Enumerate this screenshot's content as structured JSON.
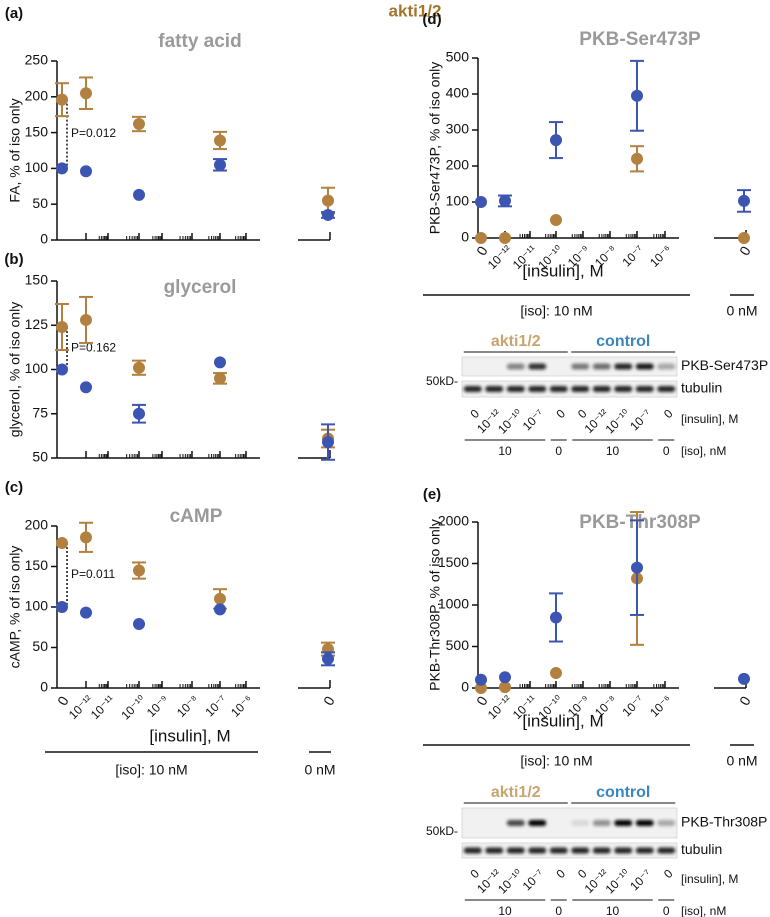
{
  "header": {
    "title": "akti1/2",
    "color": "#a5752d"
  },
  "chart_data": [
    {
      "type": "scatter",
      "panel_label": "(a)",
      "title": "fatty acid",
      "ylabel": "FA, % of iso only",
      "ylim": [
        0,
        250
      ],
      "yticks": [
        0,
        50,
        100,
        150,
        200,
        250
      ],
      "annotation": "P=0.012",
      "series": [
        {
          "color": "#b3813f",
          "values": [
            196,
            205,
            null,
            162,
            null,
            null,
            139,
            null,
            55
          ],
          "errors": [
            23,
            22,
            null,
            10,
            null,
            null,
            12,
            null,
            18
          ]
        },
        {
          "color": "#3d55b2",
          "values": [
            100,
            96,
            null,
            63,
            null,
            null,
            105,
            null,
            35
          ],
          "errors": [
            null,
            null,
            null,
            null,
            null,
            null,
            8,
            null,
            4
          ]
        }
      ]
    },
    {
      "type": "scatter",
      "panel_label": "(b)",
      "title": "glycerol",
      "ylabel": "glycerol, % of iso only",
      "ylim": [
        50,
        150
      ],
      "yticks": [
        50,
        75,
        100,
        125,
        150
      ],
      "annotation": "P=0.162",
      "series": [
        {
          "color": "#b3813f",
          "values": [
            124,
            128,
            null,
            101,
            null,
            null,
            95,
            null,
            61
          ],
          "errors": [
            13,
            13,
            null,
            4,
            null,
            null,
            3,
            null,
            5
          ]
        },
        {
          "color": "#3d55b2",
          "values": [
            100,
            90,
            null,
            75,
            null,
            null,
            104,
            null,
            59
          ],
          "errors": [
            null,
            null,
            null,
            5,
            null,
            null,
            null,
            null,
            10
          ]
        }
      ]
    },
    {
      "type": "scatter",
      "panel_label": "(c)",
      "title": "cAMP",
      "ylabel": "cAMP, % of iso only",
      "ylim": [
        0,
        200
      ],
      "yticks": [
        0,
        50,
        100,
        150,
        200
      ],
      "annotation": "P=0.011",
      "categories": [
        "0",
        "10⁻¹²",
        "10⁻¹¹",
        "10⁻¹⁰",
        "10⁻⁹",
        "10⁻⁸",
        "10⁻⁷",
        "10⁻⁶",
        "0"
      ],
      "xlabel": "[insulin], M",
      "group_labels": [
        "[iso]: 10 nM",
        "0 nM"
      ],
      "series": [
        {
          "color": "#b3813f",
          "values": [
            179,
            186,
            null,
            145,
            null,
            null,
            110,
            null,
            48
          ],
          "errors": [
            null,
            18,
            null,
            10,
            null,
            null,
            12,
            null,
            8
          ]
        },
        {
          "color": "#3d55b2",
          "values": [
            100,
            93,
            null,
            79,
            null,
            null,
            97,
            null,
            36
          ],
          "errors": [
            null,
            null,
            null,
            null,
            null,
            null,
            null,
            null,
            8
          ]
        }
      ]
    },
    {
      "type": "scatter",
      "panel_label": "(d)",
      "title": "PKB-Ser473P",
      "ylabel": "PKB-Ser473P, % of iso only",
      "ylim": [
        0,
        500
      ],
      "yticks": [
        0,
        100,
        200,
        300,
        400,
        500
      ],
      "categories": [
        "0",
        "10⁻¹²",
        "10⁻¹¹",
        "10⁻¹⁰",
        "10⁻⁹",
        "10⁻⁸",
        "10⁻⁷",
        "10⁻⁶",
        "0"
      ],
      "xlabel": "[insulin], M",
      "group_labels": [
        "[iso]: 10 nM",
        "0 nM"
      ],
      "series": [
        {
          "color": "#b3813f",
          "values": [
            0,
            0,
            null,
            50,
            null,
            null,
            220,
            null,
            0
          ],
          "errors": [
            null,
            null,
            null,
            null,
            null,
            null,
            35,
            null,
            null
          ]
        },
        {
          "color": "#3d55b2",
          "values": [
            100,
            103,
            null,
            272,
            null,
            null,
            395,
            null,
            103
          ],
          "errors": [
            null,
            15,
            null,
            50,
            null,
            null,
            97,
            null,
            30
          ]
        }
      ]
    },
    {
      "type": "scatter",
      "panel_label": "(e)",
      "title": "PKB-Thr308P",
      "ylabel": "PKB-Thr308P, % of iso only",
      "ylim": [
        0,
        2000
      ],
      "yticks": [
        0,
        500,
        1000,
        1500,
        2000
      ],
      "categories": [
        "0",
        "10⁻¹²",
        "10⁻¹¹",
        "10⁻¹⁰",
        "10⁻⁹",
        "10⁻⁸",
        "10⁻⁷",
        "10⁻⁶",
        "0"
      ],
      "xlabel": "[insulin], M",
      "group_labels": [
        "[iso]: 10 nM",
        "0 nM"
      ],
      "series": [
        {
          "color": "#b3813f",
          "values": [
            0,
            10,
            null,
            180,
            null,
            null,
            1320,
            null,
            null
          ],
          "errors": [
            null,
            null,
            null,
            null,
            null,
            null,
            800,
            null,
            null
          ]
        },
        {
          "color": "#3d55b2",
          "values": [
            100,
            130,
            null,
            850,
            null,
            null,
            1450,
            null,
            110
          ],
          "errors": [
            null,
            null,
            null,
            290,
            null,
            null,
            570,
            null,
            null
          ]
        }
      ]
    }
  ],
  "blots": [
    {
      "groups": [
        "akti1/2",
        "control"
      ],
      "group_colors": [
        "#c9a46e",
        "#3a86c0"
      ],
      "bands": [
        "PKB-Ser473P",
        "tubulin"
      ],
      "marker": "50kD-",
      "lanes": [
        "0",
        "10⁻¹²",
        "10⁻¹⁰",
        "10⁻⁷",
        "0",
        "0",
        "10⁻¹²",
        "10⁻¹⁰",
        "10⁻⁷",
        "0"
      ],
      "lanes_label": "[insulin], M",
      "iso": [
        "10",
        "0",
        "10",
        "0"
      ],
      "iso_label": "[iso], nM"
    },
    {
      "groups": [
        "akti1/2",
        "control"
      ],
      "group_colors": [
        "#c9a46e",
        "#3a86c0"
      ],
      "bands": [
        "PKB-Thr308P",
        "tubulin"
      ],
      "marker": "50kD-",
      "lanes": [
        "0",
        "10⁻¹²",
        "10⁻¹⁰",
        "10⁻⁷",
        "0",
        "0",
        "10⁻¹²",
        "10⁻¹⁰",
        "10⁻⁷",
        "0"
      ],
      "lanes_label": "[insulin], M",
      "iso": [
        "10",
        "0",
        "10",
        "0"
      ],
      "iso_label": "[iso], nM"
    }
  ]
}
